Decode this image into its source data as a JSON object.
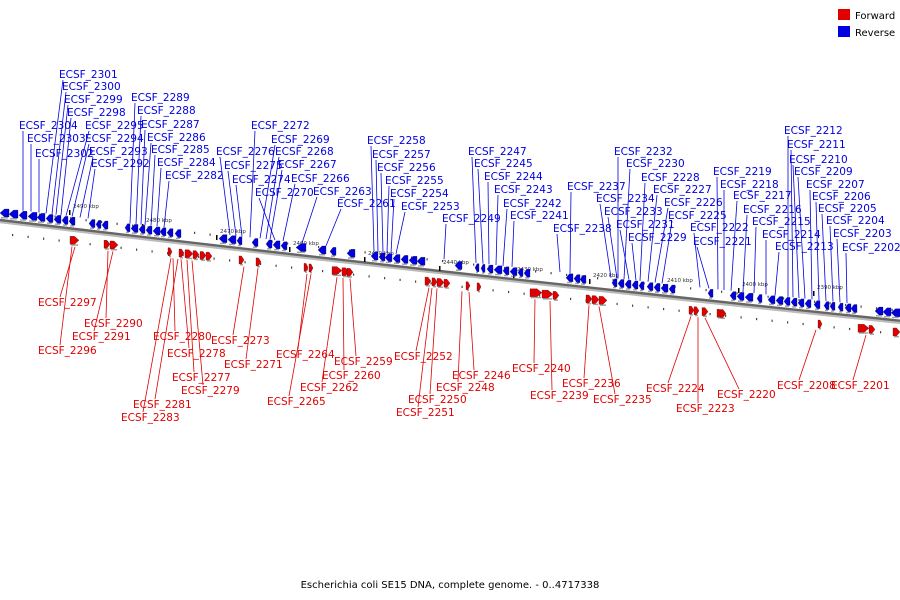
{
  "caption": "Escherichia coli SE15 DNA, complete genome. - 0..4717338",
  "legend": {
    "forward_label": "Forward",
    "reverse_label": "Reverse",
    "forward_color": "#e00000",
    "reverse_color": "#0000e0"
  },
  "colors": {
    "forward": "#e00000",
    "reverse": "#0000e0",
    "backbone": "#666666",
    "ticks": "#111111"
  },
  "scale_labels": [
    "2490 kbp",
    "2480 kbp",
    "2470 kbp",
    "2460 kbp",
    "2450 kbp",
    "2440 kbp",
    "2430 kbp",
    "2420 kbp",
    "2410 kbp",
    "2400 kbp",
    "2390 kbp"
  ],
  "reverse_genes": [
    "ECSF_2304",
    "ECSF_2303",
    "ECSF_2302",
    "ECSF_2301",
    "ECSF_2300",
    "ECSF_2299",
    "ECSF_2298",
    "ECSF_2295",
    "ECSF_2294",
    "ECSF_2293",
    "ECSF_2292",
    "ECSF_2289",
    "ECSF_2288",
    "ECSF_2287",
    "ECSF_2286",
    "ECSF_2285",
    "ECSF_2284",
    "ECSF_2282",
    "ECSF_2276",
    "ECSF_2275",
    "ECSF_2274",
    "ECSF_2272",
    "ECSF_2269",
    "ECSF_2268",
    "ECSF_2267",
    "ECSF_2270",
    "ECSF_2266",
    "ECSF_2263",
    "ECSF_2261",
    "ECSF_2258",
    "ECSF_2257",
    "ECSF_2256",
    "ECSF_2255",
    "ECSF_2254",
    "ECSF_2253",
    "ECSF_2249",
    "ECSF_2247",
    "ECSF_2245",
    "ECSF_2244",
    "ECSF_2243",
    "ECSF_2242",
    "ECSF_2241",
    "ECSF_2238",
    "ECSF_2237",
    "ECSF_2234",
    "ECSF_2233",
    "ECSF_2232",
    "ECSF_2230",
    "ECSF_2231",
    "ECSF_2229",
    "ECSF_2228",
    "ECSF_2227",
    "ECSF_2226",
    "ECSF_2225",
    "ECSF_2222",
    "ECSF_2221",
    "ECSF_2219",
    "ECSF_2218",
    "ECSF_2217",
    "ECSF_2216",
    "ECSF_2215",
    "ECSF_2214",
    "ECSF_2213",
    "ECSF_2212",
    "ECSF_2211",
    "ECSF_2210",
    "ECSF_2209",
    "ECSF_2207",
    "ECSF_2206",
    "ECSF_2205",
    "ECSF_2204",
    "ECSF_2203",
    "ECSF_2202"
  ],
  "forward_genes": [
    "ECSF_2297",
    "ECSF_2296",
    "ECSF_2290",
    "ECSF_2291",
    "ECSF_2280",
    "ECSF_2278",
    "ECSF_2277",
    "ECSF_2279",
    "ECSF_2281",
    "ECSF_2283",
    "ECSF_2273",
    "ECSF_2271",
    "ECSF_2264",
    "ECSF_2265",
    "ECSF_2262",
    "ECSF_2260",
    "ECSF_2259",
    "ECSF_2252",
    "ECSF_2250",
    "ECSF_2251",
    "ECSF_2248",
    "ECSF_2246",
    "ECSF_2240",
    "ECSF_2239",
    "ECSF_2236",
    "ECSF_2235",
    "ECSF_2224",
    "ECSF_2223",
    "ECSF_2220",
    "ECSF_2208",
    "ECSF_2201"
  ]
}
